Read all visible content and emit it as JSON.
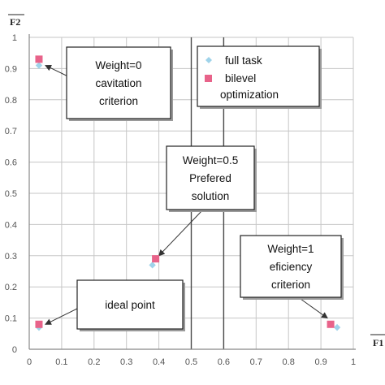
{
  "chart_data": {
    "type": "scatter",
    "xlabel": "F1",
    "ylabel": "F2",
    "xlim": [
      0,
      1
    ],
    "ylim": [
      0,
      1
    ],
    "x_ticks": [
      "0",
      "0.1",
      "0.2",
      "0.3",
      "0.4",
      "0.5",
      "0.6",
      "0.7",
      "0.8",
      "0.9",
      "1"
    ],
    "y_ticks": [
      "0",
      "0.1",
      "0.2",
      "0.3",
      "0.4",
      "0.5",
      "0.6",
      "0.7",
      "0.8",
      "0.9",
      "1"
    ],
    "grid": true,
    "legend_position": "top-right",
    "series": [
      {
        "name": "full task",
        "marker": "diamond",
        "color": "#9fd3ea",
        "points": [
          {
            "x": 0.03,
            "y": 0.91
          },
          {
            "x": 0.38,
            "y": 0.27
          },
          {
            "x": 0.03,
            "y": 0.07
          },
          {
            "x": 0.95,
            "y": 0.07
          }
        ]
      },
      {
        "name": "bilevel optimization",
        "marker": "square",
        "color": "#e8638a",
        "points": [
          {
            "x": 0.03,
            "y": 0.93
          },
          {
            "x": 0.39,
            "y": 0.29
          },
          {
            "x": 0.03,
            "y": 0.08
          },
          {
            "x": 0.93,
            "y": 0.08
          }
        ]
      }
    ],
    "reference_lines_x": [
      0.5,
      0.6
    ],
    "annotations": [
      {
        "lines": [
          "Weight=0",
          "cavitation",
          "criterion"
        ],
        "target": {
          "x": 0.05,
          "y": 0.91
        }
      },
      {
        "lines": [
          "Weight=0.5",
          "Prefered",
          "solution"
        ],
        "target": {
          "x": 0.4,
          "y": 0.3
        }
      },
      {
        "lines": [
          "Weight=1",
          "eficiency",
          "criterion"
        ],
        "target": {
          "x": 0.92,
          "y": 0.1
        }
      },
      {
        "lines": [
          "ideal point"
        ],
        "target": {
          "x": 0.05,
          "y": 0.08
        }
      }
    ]
  }
}
